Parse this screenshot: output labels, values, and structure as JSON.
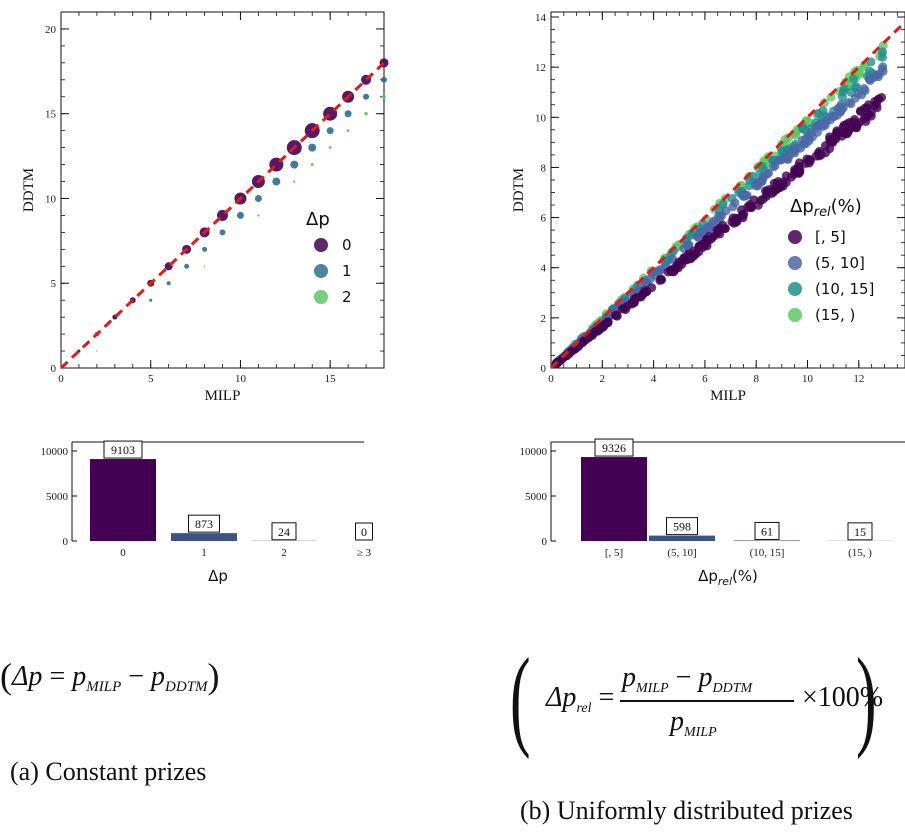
{
  "panel_a": {
    "caption": "(a) Constant prizes",
    "formula": {
      "lhs": "Δp",
      "p1": "p",
      "sub1": "MILP",
      "p2": "p",
      "sub2": "DDTM"
    }
  },
  "panel_b": {
    "caption": "(b) Uniformly distributed prizes",
    "formula": {
      "lhs": "Δp",
      "lhs_sub": "rel",
      "p1": "p",
      "sub1": "MILP",
      "p2": "p",
      "sub2": "DDTM",
      "den": "p",
      "den_sub": "MILP",
      "tail": "×100%"
    }
  },
  "colors": {
    "c0": "#440154",
    "c1": "#2e6e8e",
    "c2": "#5cc863",
    "c3": "#4a68a8",
    "c4": "#21908d",
    "ref_line": "#e31a1c",
    "bar0": "#440154",
    "bar1": "#3b528b"
  },
  "chart_data": [
    {
      "id": "a_scatter",
      "type": "scatter",
      "xlabel": "MILP",
      "ylabel": "DDTM",
      "xlim": [
        0,
        18
      ],
      "ylim": [
        0,
        21
      ],
      "xticks": [
        0,
        5,
        10,
        15
      ],
      "yticks": [
        0,
        5,
        10,
        15,
        20
      ],
      "legend_title": "Δp",
      "legend_placement": "center-right",
      "series": [
        {
          "name": "0",
          "color_key": "c0",
          "points": [
            [
              1,
              1,
              1.5
            ],
            [
              2,
              2,
              2
            ],
            [
              3,
              3,
              2.5
            ],
            [
              4,
              4,
              3
            ],
            [
              5,
              5,
              3.5
            ],
            [
              6,
              6,
              4
            ],
            [
              7,
              7,
              4.5
            ],
            [
              8,
              8,
              5
            ],
            [
              9,
              9,
              5.5
            ],
            [
              10,
              10,
              6
            ],
            [
              11,
              11,
              6.5
            ],
            [
              12,
              12,
              7
            ],
            [
              13,
              13,
              7.5
            ],
            [
              14,
              14,
              7.5
            ],
            [
              15,
              15,
              7
            ],
            [
              16,
              16,
              6
            ],
            [
              17,
              17,
              5
            ],
            [
              18,
              18,
              4.5
            ]
          ]
        },
        {
          "name": "1",
          "color_key": "c1",
          "points": [
            [
              2,
              1,
              0.6
            ],
            [
              5,
              4,
              1.5
            ],
            [
              6,
              5,
              2
            ],
            [
              7,
              6,
              2.5
            ],
            [
              8,
              7,
              2.5
            ],
            [
              9,
              8,
              3
            ],
            [
              10,
              9,
              3.5
            ],
            [
              11,
              10,
              3.5
            ],
            [
              12,
              11,
              4
            ],
            [
              13,
              12,
              4
            ],
            [
              14,
              13,
              4
            ],
            [
              15,
              14,
              3.5
            ],
            [
              16,
              15,
              3.5
            ],
            [
              17,
              16,
              3
            ],
            [
              18,
              17,
              3
            ]
          ]
        },
        {
          "name": "2",
          "color_key": "c2",
          "points": [
            [
              8,
              6,
              0.8
            ],
            [
              11,
              9,
              1.2
            ],
            [
              13,
              11,
              1.2
            ],
            [
              14,
              12,
              1.5
            ],
            [
              15,
              13,
              1.5
            ],
            [
              16,
              14,
              1.5
            ],
            [
              17,
              15,
              1.8
            ],
            [
              18,
              16,
              2
            ]
          ]
        }
      ],
      "reference_line": "y = x"
    },
    {
      "id": "a_bar",
      "type": "bar",
      "xlabel": "Δp",
      "ylabel": "",
      "categories": [
        "0",
        "1",
        "2",
        "≥ 3"
      ],
      "values": [
        9103,
        873,
        24,
        0
      ],
      "ylim": [
        0,
        11000
      ],
      "yticks": [
        0,
        5000,
        10000
      ]
    },
    {
      "id": "b_scatter",
      "type": "scatter",
      "xlabel": "MILP",
      "ylabel": "DDTM",
      "xlim": [
        0,
        13.8
      ],
      "ylim": [
        0,
        14.2
      ],
      "xticks": [
        0,
        2,
        4,
        6,
        8,
        10,
        12
      ],
      "yticks": [
        0,
        2,
        4,
        6,
        8,
        10,
        12,
        14
      ],
      "legend_title": "Δp_rel(%)",
      "legend_placement": "center-right",
      "series": [
        {
          "name": "[, 5]",
          "color_key": "c0"
        },
        {
          "name": "(5, 10]",
          "color_key": "c3"
        },
        {
          "name": "(10, 15]",
          "color_key": "c4"
        },
        {
          "name": "(15, )",
          "color_key": "c2"
        }
      ],
      "reference_line": "y = x"
    },
    {
      "id": "b_bar",
      "type": "bar",
      "xlabel": "Δp_rel(%)",
      "ylabel": "",
      "categories": [
        "[, 5]",
        "(5, 10]",
        "(10, 15]",
        "(15, )"
      ],
      "values": [
        9326,
        598,
        61,
        15
      ],
      "ylim": [
        0,
        11000
      ],
      "yticks": [
        0,
        5000,
        10000
      ]
    }
  ]
}
